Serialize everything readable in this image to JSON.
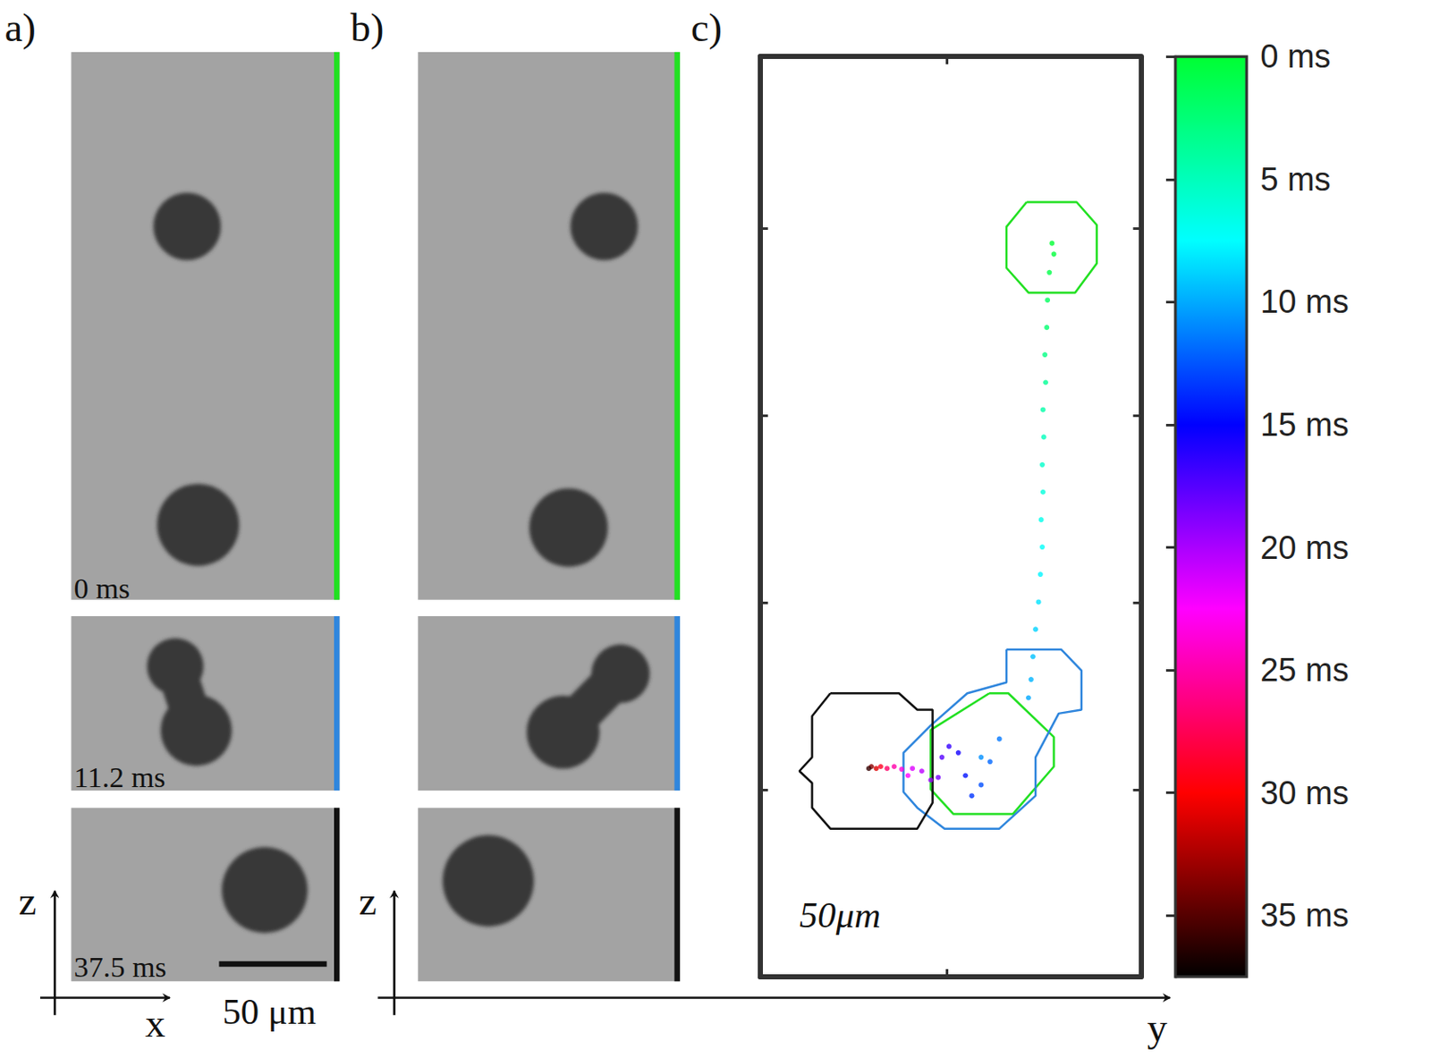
{
  "panels": {
    "a": {
      "label": "a)",
      "time_labels": [
        "0 ms",
        "11.2 ms",
        "37.5 ms"
      ],
      "scale_bar": "50 μm",
      "axes": [
        "x",
        "z"
      ]
    },
    "b": {
      "label": "b)",
      "axes": [
        "y",
        "z"
      ]
    },
    "c": {
      "label": "c)"
    }
  },
  "chart_data": {
    "type": "scatter",
    "xlim": [
      0,
      102
    ],
    "xticks": [
      50
    ],
    "ylim": [
      0,
      246
    ],
    "yticks": [
      50,
      100,
      150,
      200
    ],
    "tick_labels": false,
    "annotations": [
      "50μm"
    ],
    "colorbar": {
      "range": [
        0,
        37.5
      ],
      "ticks": [
        {
          "value": 0,
          "label": "0 ms"
        },
        {
          "value": 5,
          "label": "5 ms"
        },
        {
          "value": 10,
          "label": "10 ms"
        },
        {
          "value": 15,
          "label": "15 ms"
        },
        {
          "value": 20,
          "label": "20 ms"
        },
        {
          "value": 25,
          "label": "25 ms"
        },
        {
          "value": 30,
          "label": "30 ms"
        },
        {
          "value": 35,
          "label": "35 ms"
        }
      ]
    },
    "series": [
      {
        "type": "scatter",
        "x": [
          78.2,
          78.7,
          77.5,
          77.0,
          76.8,
          76.3,
          76.5,
          75.8,
          76.0,
          75.6,
          75.8,
          75.3,
          75.6,
          75.1,
          74.6,
          73.8,
          73.1,
          72.6,
          71.9,
          59.2,
          64.1,
          61.6,
          59.2,
          56.7,
          55.0,
          53.1,
          50.6,
          48.7,
          47.7,
          45.7,
          43.3,
          40.8,
          39.6,
          37.9,
          35.9,
          34.0,
          32.3,
          31.1,
          29.8,
          29.1
        ],
        "values": [
          196.1,
          193.2,
          188.3,
          180.9,
          173.6,
          166.3,
          158.9,
          151.6,
          144.3,
          136.9,
          129.6,
          122.2,
          114.9,
          107.6,
          100.2,
          92.9,
          85.6,
          79.5,
          74.6,
          58.7,
          63.6,
          57.5,
          51.3,
          48.4,
          53.8,
          59.9,
          61.6,
          58.7,
          53.3,
          52.6,
          55.0,
          55.7,
          53.8,
          55.5,
          56.2,
          55.7,
          56.2,
          55.7,
          56.2,
          55.7
        ],
        "time": [
          0,
          0.3,
          0.8,
          1.5,
          2.2,
          2.9,
          3.6,
          4.3,
          5.0,
          5.6,
          6.2,
          6.8,
          7.3,
          7.8,
          8.3,
          8.8,
          9.3,
          9.7,
          10.1,
          10.8,
          11.5,
          12.0,
          12.7,
          13.5,
          14.5,
          15.5,
          16.5,
          17.5,
          18.5,
          19.5,
          20.5,
          21.5,
          22.5,
          23.5,
          25.0,
          27.0,
          29.0,
          31.0,
          33.5,
          36.0
        ]
      },
      {
        "type": "line",
        "color": "#22e022",
        "x": [
          71.4,
          84.8,
          90.2,
          90.2,
          84.4,
          71.9,
          66.0,
          66.0
        ],
        "values": [
          207.1,
          207.1,
          201.0,
          190.7,
          182.9,
          182.9,
          189.5,
          200.5
        ]
      },
      {
        "type": "line",
        "color": "#22e022",
        "x": [
          61.4,
          66.5,
          78.7,
          78.7,
          67.7,
          51.8,
          45.7,
          45.7
        ],
        "values": [
          75.8,
          75.8,
          64.1,
          56.2,
          43.5,
          43.5,
          50.1,
          66.0
        ]
      },
      {
        "type": "line",
        "color": "#2f86dd",
        "x": [
          66.0,
          80.7,
          86.1,
          86.1,
          80.0,
          73.8,
          73.8,
          64.1,
          49.4,
          42.1,
          38.4,
          38.4,
          45.7,
          55.5,
          66.0
        ],
        "values": [
          87.5,
          87.5,
          81.9,
          71.4,
          70.4,
          58.7,
          48.4,
          39.6,
          39.6,
          45.2,
          49.4,
          59.9,
          67.2,
          75.8,
          78.7
        ]
      },
      {
        "type": "line",
        "color": "#111111",
        "x": [
          18.8,
          37.2,
          42.1,
          46.2,
          46.2,
          42.1,
          18.8,
          13.9,
          13.9,
          10.5,
          13.9,
          13.9
        ],
        "values": [
          75.8,
          75.8,
          71.4,
          71.4,
          46.5,
          39.6,
          39.6,
          45.2,
          51.8,
          55.0,
          58.7,
          69.7
        ]
      }
    ]
  }
}
